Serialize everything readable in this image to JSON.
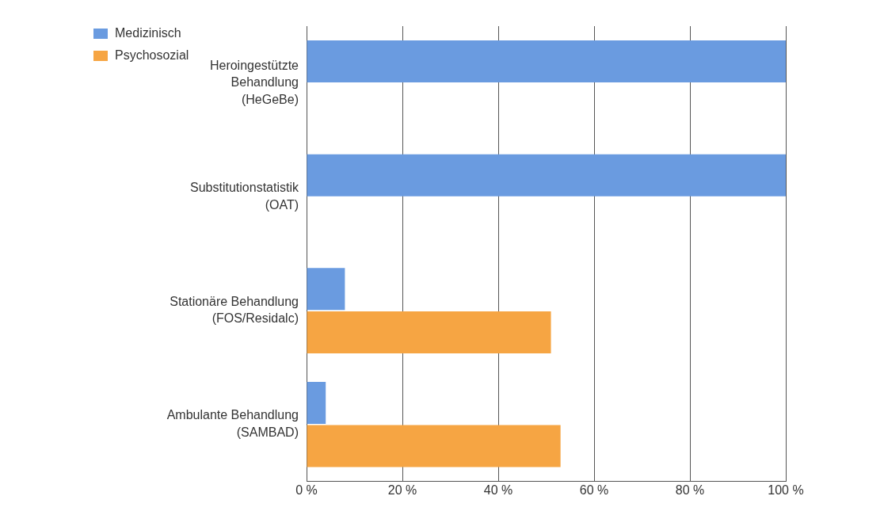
{
  "chart_data": {
    "type": "bar",
    "orientation": "horizontal",
    "categories": [
      "Heroingestützte\nBehandlung\n(HeGeBe)",
      "Substitutionstatistik\n(OAT)",
      "Stationäre Behandlung\n(FOS/Residalc)",
      "Ambulante Behandlung\n(SAMBAD)"
    ],
    "series": [
      {
        "name": "Medizinisch",
        "color": "#6a9be0",
        "values": [
          100,
          100,
          8,
          4
        ]
      },
      {
        "name": "Psychosozial",
        "color": "#f6a543",
        "values": [
          null,
          null,
          51,
          53
        ]
      }
    ],
    "xlim": [
      0,
      100
    ],
    "xticks": [
      {
        "value": 0,
        "label": "0 %"
      },
      {
        "value": 20,
        "label": "20 %"
      },
      {
        "value": 40,
        "label": "40 %"
      },
      {
        "value": 60,
        "label": "60 %"
      },
      {
        "value": 80,
        "label": "80 %"
      },
      {
        "value": 100,
        "label": "100 %"
      }
    ],
    "grid": "x",
    "legend": "top left"
  }
}
